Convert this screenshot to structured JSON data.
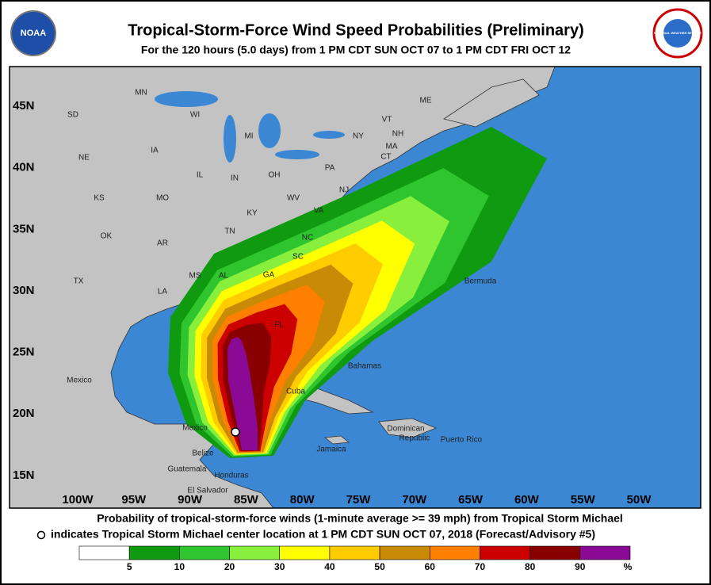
{
  "header": {
    "title": "Tropical-Storm-Force Wind Speed Probabilities (Preliminary)",
    "subtitle": "For the 120 hours (5.0 days) from 1 PM CDT SUN OCT 07 to 1 PM CDT FRI OCT 12",
    "logo_left": "NOAA",
    "logo_right": "NATIONAL WEATHER SERVICE"
  },
  "map": {
    "lat_ticks": [
      {
        "value": 45,
        "label": "45N"
      },
      {
        "value": 40,
        "label": "40N"
      },
      {
        "value": 35,
        "label": "35N"
      },
      {
        "value": 30,
        "label": "30N"
      },
      {
        "value": 25,
        "label": "25N"
      },
      {
        "value": 20,
        "label": "20N"
      },
      {
        "value": 15,
        "label": "15N"
      }
    ],
    "lon_ticks": [
      {
        "value": -100,
        "label": "100W"
      },
      {
        "value": -95,
        "label": "95W"
      },
      {
        "value": -90,
        "label": "90W"
      },
      {
        "value": -85,
        "label": "85W"
      },
      {
        "value": -80,
        "label": "80W"
      },
      {
        "value": -75,
        "label": "75W"
      },
      {
        "value": -70,
        "label": "70W"
      },
      {
        "value": -65,
        "label": "65W"
      },
      {
        "value": -60,
        "label": "60W"
      },
      {
        "value": -55,
        "label": "55W"
      },
      {
        "value": -50,
        "label": "50W"
      }
    ],
    "places": [
      "MN",
      "SD",
      "WI",
      "MI",
      "NE",
      "IA",
      "IL",
      "IN",
      "OH",
      "PA",
      "NY",
      "ME",
      "VT",
      "NH",
      "MA",
      "CT",
      "NJ",
      "KS",
      "MO",
      "KY",
      "WV",
      "VA",
      "OK",
      "AR",
      "TN",
      "NC",
      "SC",
      "TX",
      "MS",
      "AL",
      "GA",
      "LA",
      "FL",
      "Mexico",
      "Mexico",
      "Bermuda",
      "Bahamas",
      "Cuba",
      "Jamaica",
      "Dominican",
      "Republic",
      "Puerto Rico",
      "Belize",
      "Guatemala",
      "Honduras",
      "El Salvador"
    ]
  },
  "caption": {
    "line1": "Probability of tropical-storm-force winds (1-minute average >= 39 mph) from Tropical Storm Michael",
    "line2": "indicates Tropical Storm Michael center location at 1 PM CDT SUN OCT 07, 2018 (Forecast/Advisory #5)"
  },
  "legend": {
    "boundaries": [
      5,
      10,
      20,
      30,
      40,
      50,
      60,
      70,
      80,
      90
    ],
    "unit": "%",
    "colors": [
      "#ffffff",
      "#0f9a0f",
      "#2ec52e",
      "#88ef3c",
      "#ffff00",
      "#ffcc00",
      "#c98a06",
      "#ff7f00",
      "#cc0000",
      "#880000",
      "#8a0a96"
    ]
  }
}
